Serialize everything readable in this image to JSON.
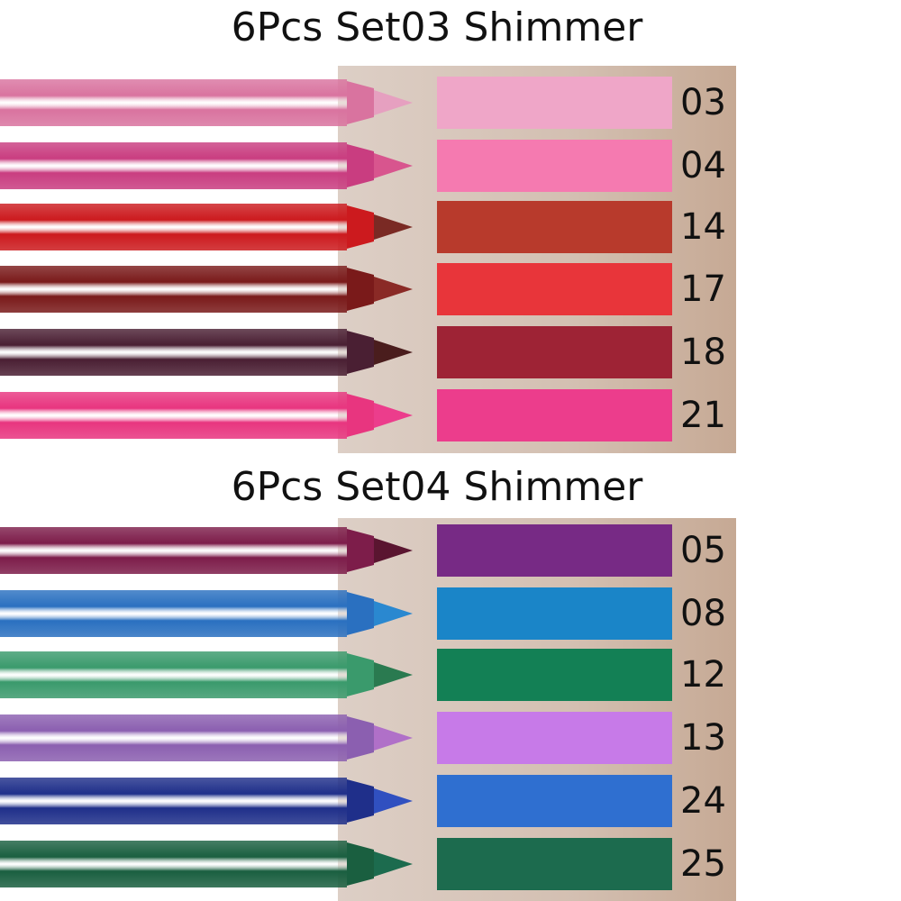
{
  "sets": [
    {
      "title": "6Pcs Set03 Shimmer",
      "items": [
        {
          "code": "03",
          "pencil_color": "#d9739f",
          "tip_color": "#e6a0c0",
          "swatch_color": "#efa6c8"
        },
        {
          "code": "04",
          "pencil_color": "#c93d80",
          "tip_color": "#d8558e",
          "swatch_color": "#f57ab0"
        },
        {
          "code": "14",
          "pencil_color": "#cc1a1e",
          "tip_color": "#7a2a24",
          "swatch_color": "#b83a2c"
        },
        {
          "code": "17",
          "pencil_color": "#7a1a1a",
          "tip_color": "#8a2a26",
          "swatch_color": "#e8353a"
        },
        {
          "code": "18",
          "pencil_color": "#4a1f33",
          "tip_color": "#4a1d1d",
          "swatch_color": "#9e2335"
        },
        {
          "code": "21",
          "pencil_color": "#e8357f",
          "tip_color": "#ec3d8c",
          "swatch_color": "#ec3d8c"
        }
      ]
    },
    {
      "title": "6Pcs Set04 Shimmer",
      "items": [
        {
          "code": "05",
          "pencil_color": "#7d1d4a",
          "tip_color": "#5a1530",
          "swatch_color": "#772a85"
        },
        {
          "code": "08",
          "pencil_color": "#2a70c0",
          "tip_color": "#2a88d0",
          "swatch_color": "#1a85c8"
        },
        {
          "code": "12",
          "pencil_color": "#3a9a6c",
          "tip_color": "#2a7a50",
          "swatch_color": "#138055"
        },
        {
          "code": "13",
          "pencil_color": "#8b5fb0",
          "tip_color": "#b070c8",
          "swatch_color": "#c77ae8"
        },
        {
          "code": "24",
          "pencil_color": "#1f2f8a",
          "tip_color": "#3050c0",
          "swatch_color": "#2f6fd0"
        },
        {
          "code": "25",
          "pencil_color": "#1a5f40",
          "tip_color": "#1c6b4e",
          "swatch_color": "#1c6b4e"
        }
      ]
    }
  ]
}
